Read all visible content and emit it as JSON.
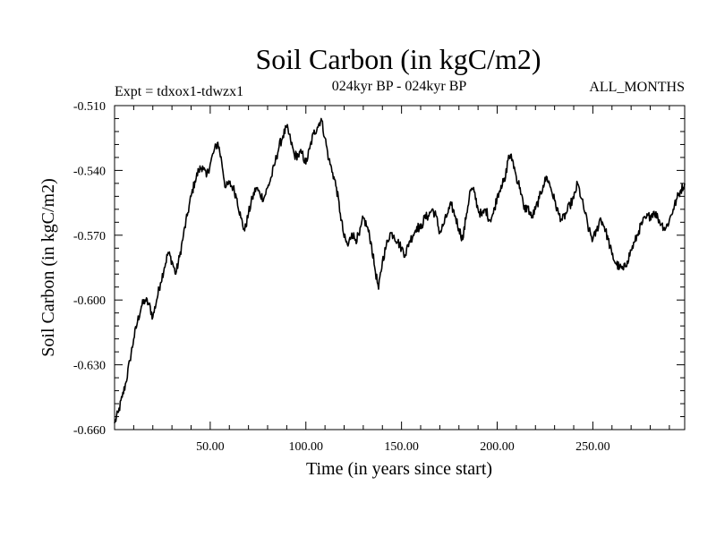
{
  "chart_data": {
    "type": "line",
    "title": "Soil Carbon (in kgC/m2)",
    "subtitle_left": "Expt = tdxox1-tdwzx1",
    "subtitle_center": "024kyr BP - 024kyr BP",
    "subtitle_right": "ALL_MONTHS",
    "xlabel": "Time (in years since start)",
    "ylabel": "Soil Carbon (in kgC/m2)",
    "xlim": [
      0,
      298
    ],
    "ylim": [
      -0.66,
      -0.51
    ],
    "x_ticks": [
      50,
      100,
      150,
      200,
      250
    ],
    "x_tick_labels": [
      "50.00",
      "100.00",
      "150.00",
      "200.00",
      "250.00"
    ],
    "y_ticks": [
      -0.66,
      -0.63,
      -0.6,
      -0.57,
      -0.54,
      -0.51
    ],
    "y_tick_labels": [
      "-0.660",
      "-0.630",
      "-0.600",
      "-0.570",
      "-0.540",
      "-0.510"
    ],
    "grid": false,
    "series": [
      {
        "name": "Soil Carbon",
        "color": "#000000",
        "x": [
          0,
          2,
          4,
          6,
          8,
          10,
          12,
          14,
          16,
          18,
          20,
          22,
          24,
          26,
          28,
          30,
          32,
          34,
          36,
          38,
          40,
          42,
          44,
          46,
          48,
          50,
          52,
          54,
          56,
          58,
          60,
          62,
          64,
          66,
          68,
          70,
          72,
          74,
          76,
          78,
          80,
          82,
          84,
          86,
          88,
          90,
          92,
          94,
          96,
          98,
          100,
          102,
          104,
          106,
          108,
          110,
          112,
          114,
          116,
          118,
          120,
          122,
          124,
          126,
          128,
          130,
          132,
          134,
          136,
          138,
          140,
          142,
          144,
          146,
          148,
          150,
          152,
          154,
          156,
          158,
          160,
          162,
          164,
          166,
          168,
          170,
          172,
          174,
          176,
          178,
          180,
          182,
          184,
          186,
          188,
          190,
          192,
          194,
          196,
          198,
          200,
          202,
          204,
          206,
          208,
          210,
          212,
          214,
          216,
          218,
          220,
          222,
          224,
          226,
          228,
          230,
          232,
          234,
          236,
          238,
          240,
          242,
          244,
          246,
          248,
          250,
          252,
          254,
          256,
          258,
          260,
          262,
          264,
          266,
          268,
          270,
          272,
          274,
          276,
          278,
          280,
          282,
          284,
          286,
          288,
          290,
          292,
          294,
          296,
          298
        ],
        "y": [
          -0.657,
          -0.652,
          -0.645,
          -0.638,
          -0.628,
          -0.618,
          -0.61,
          -0.603,
          -0.6,
          -0.602,
          -0.608,
          -0.6,
          -0.592,
          -0.585,
          -0.578,
          -0.582,
          -0.588,
          -0.58,
          -0.57,
          -0.561,
          -0.552,
          -0.545,
          -0.54,
          -0.538,
          -0.543,
          -0.537,
          -0.531,
          -0.527,
          -0.536,
          -0.548,
          -0.546,
          -0.548,
          -0.553,
          -0.562,
          -0.568,
          -0.56,
          -0.553,
          -0.548,
          -0.551,
          -0.553,
          -0.548,
          -0.543,
          -0.536,
          -0.529,
          -0.524,
          -0.52,
          -0.526,
          -0.533,
          -0.533,
          -0.532,
          -0.537,
          -0.53,
          -0.523,
          -0.52,
          -0.516,
          -0.525,
          -0.535,
          -0.541,
          -0.548,
          -0.56,
          -0.571,
          -0.575,
          -0.569,
          -0.572,
          -0.57,
          -0.562,
          -0.566,
          -0.573,
          -0.585,
          -0.595,
          -0.582,
          -0.575,
          -0.569,
          -0.57,
          -0.573,
          -0.576,
          -0.579,
          -0.573,
          -0.57,
          -0.566,
          -0.567,
          -0.562,
          -0.561,
          -0.558,
          -0.561,
          -0.569,
          -0.565,
          -0.56,
          -0.556,
          -0.561,
          -0.567,
          -0.572,
          -0.56,
          -0.549,
          -0.55,
          -0.558,
          -0.561,
          -0.558,
          -0.563,
          -0.56,
          -0.552,
          -0.547,
          -0.545,
          -0.533,
          -0.535,
          -0.543,
          -0.548,
          -0.558,
          -0.557,
          -0.562,
          -0.558,
          -0.553,
          -0.547,
          -0.543,
          -0.548,
          -0.554,
          -0.56,
          -0.563,
          -0.56,
          -0.556,
          -0.553,
          -0.546,
          -0.553,
          -0.56,
          -0.568,
          -0.572,
          -0.568,
          -0.562,
          -0.566,
          -0.572,
          -0.579,
          -0.583,
          -0.585,
          -0.586,
          -0.582,
          -0.577,
          -0.573,
          -0.568,
          -0.564,
          -0.562,
          -0.561,
          -0.559,
          -0.562,
          -0.565,
          -0.567,
          -0.563,
          -0.558,
          -0.553,
          -0.549,
          -0.546
        ]
      }
    ]
  }
}
